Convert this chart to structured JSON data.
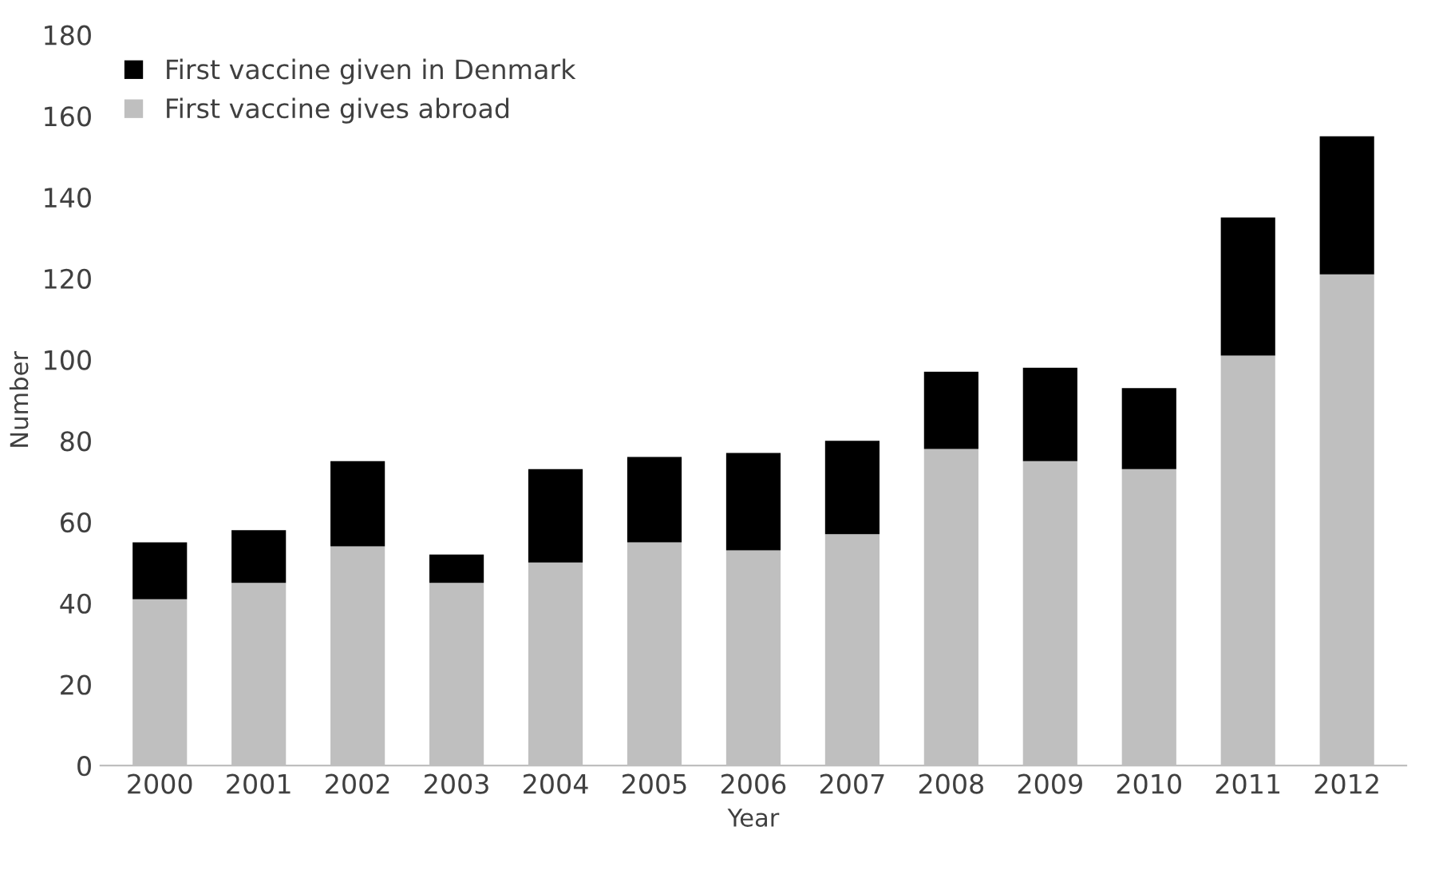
{
  "chart_data": {
    "type": "bar",
    "stacked": true,
    "xlabel": "Year",
    "ylabel": "Number",
    "categories": [
      "2000",
      "2001",
      "2002",
      "2003",
      "2004",
      "2005",
      "2006",
      "2007",
      "2008",
      "2009",
      "2010",
      "2011",
      "2012"
    ],
    "series": [
      {
        "name": "First vaccine gives abroad",
        "color": "#bfbfbf",
        "values": [
          41,
          45,
          54,
          45,
          50,
          55,
          53,
          57,
          78,
          75,
          73,
          101,
          121
        ]
      },
      {
        "name": "First vaccine given in Denmark",
        "color": "#000000",
        "values": [
          14,
          13,
          21,
          7,
          23,
          21,
          24,
          23,
          19,
          23,
          20,
          34,
          34
        ]
      }
    ],
    "ylim": [
      0,
      180
    ],
    "yticks": [
      0,
      20,
      40,
      60,
      80,
      100,
      120,
      140,
      160,
      180
    ],
    "grid": false,
    "legend": "top left"
  }
}
